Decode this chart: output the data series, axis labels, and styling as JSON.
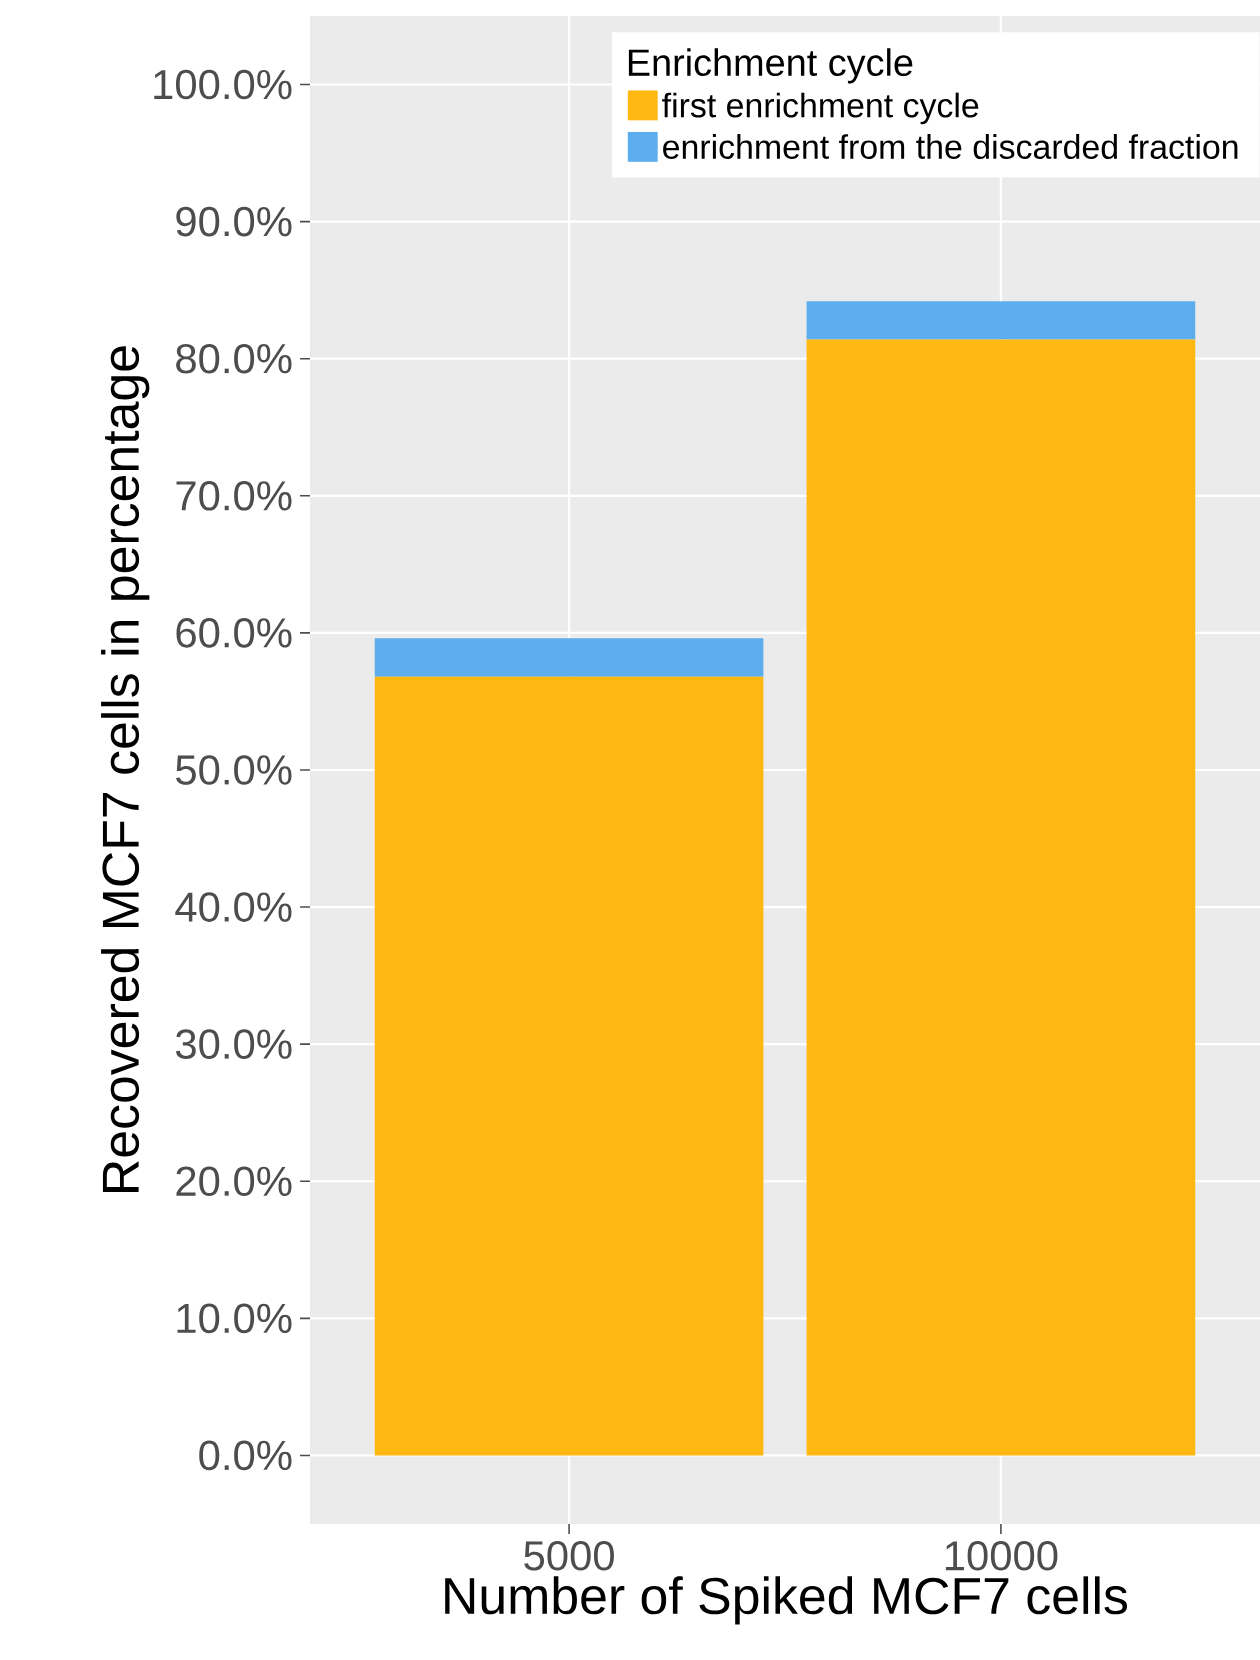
{
  "chart_data": {
    "type": "bar",
    "stacked": true,
    "xlabel": "Number of Spiked MCF7 cells",
    "ylabel": "Recovered MCF7 cells in percentage",
    "legend_title": "Enrichment cycle",
    "legend": "top right",
    "grid": true,
    "categories": [
      "5000",
      "10000"
    ],
    "series": [
      {
        "name": "first enrichment cycle",
        "color": "#ffb811",
        "values": [
          56.8,
          81.4
        ]
      },
      {
        "name": "enrichment from the discarded fraction",
        "color": "#5daeee",
        "values": [
          2.8,
          2.8
        ]
      }
    ],
    "ylim": [
      -5,
      105
    ],
    "yticks": [
      {
        "value": 0,
        "label": "0.0%"
      },
      {
        "value": 10,
        "label": "10.0%"
      },
      {
        "value": 20,
        "label": "20.0%"
      },
      {
        "value": 30,
        "label": "30.0%"
      },
      {
        "value": 40,
        "label": "40.0%"
      },
      {
        "value": 50,
        "label": "50.0%"
      },
      {
        "value": 60,
        "label": "60.0%"
      },
      {
        "value": 70,
        "label": "70.0%"
      },
      {
        "value": 80,
        "label": "80.0%"
      },
      {
        "value": 90,
        "label": "90.0%"
      },
      {
        "value": 100,
        "label": "100.0%"
      }
    ]
  }
}
